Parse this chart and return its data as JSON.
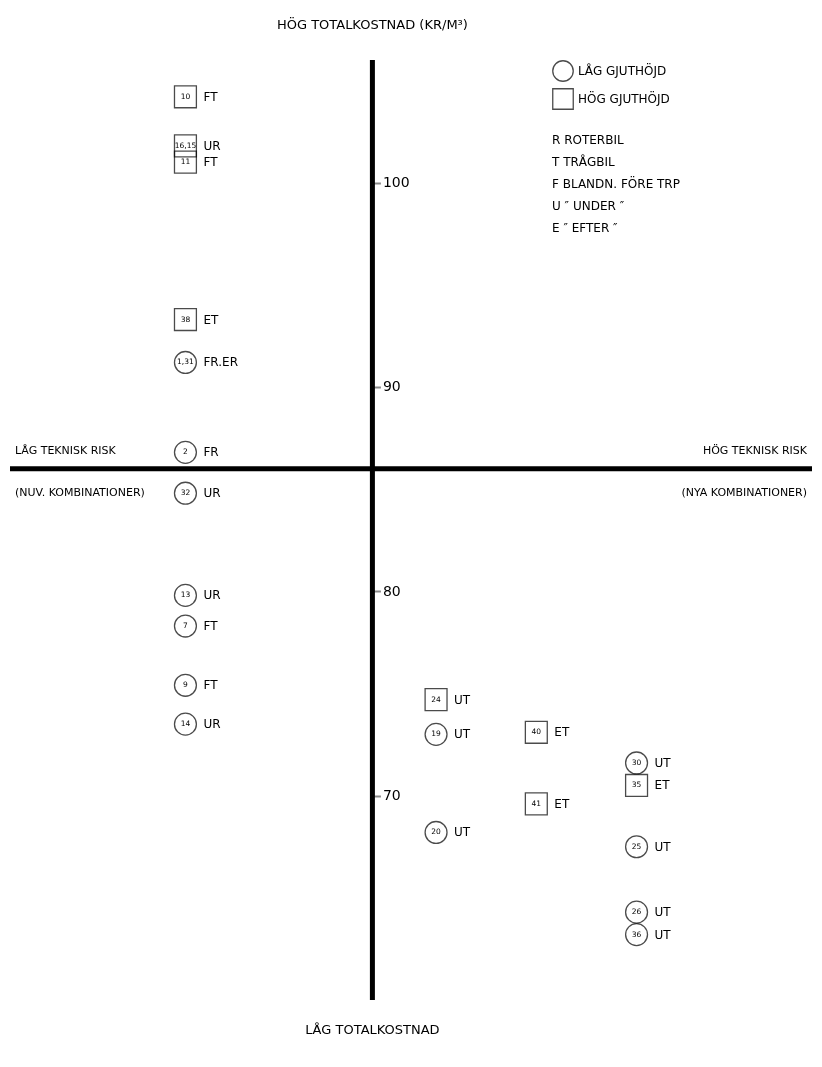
{
  "chart_data": {
    "type": "scatter",
    "ylabel": "HÖG TOTALKOSTNAD (KR/M³)",
    "xlabel": "HÖG TEKNISK RISK",
    "categories": [
      null,
      null,
      null,
      null,
      null,
      null,
      null,
      null,
      null,
      null,
      null,
      null,
      null,
      null,
      null,
      null
    ],
    "ylim": [
      60,
      106
    ],
    "yticks": [
      70,
      80,
      90,
      100
    ],
    "grid": false,
    "legend": "top right",
    "ref_lines": [
      {
        "axis": "y",
        "value": 86
      }
    ],
    "series": [
      {
        "name": "LÅG GJUTHÖJD",
        "color": "#000000",
        "marker": "circle",
        "values": [
          null,
          null,
          null,
          91.2,
          null,
          null,
          null,
          null,
          73.0,
          null,
          null,
          null,
          71.6,
          null,
          null,
          null
        ]
      },
      {
        "color": "#000000",
        "marker": "circle",
        "values": [
          null,
          null,
          null,
          86.8,
          null,
          null,
          null,
          null,
          68.2,
          null,
          null,
          null,
          67.5,
          null,
          null,
          null
        ]
      },
      {
        "color": "#000000",
        "marker": "circle",
        "values": [
          null,
          null,
          null,
          84.8,
          null,
          null,
          null,
          null,
          null,
          null,
          null,
          null,
          64.3,
          null,
          null,
          null
        ]
      },
      {
        "color": "#000000",
        "marker": "circle",
        "values": [
          null,
          null,
          null,
          79.8,
          null,
          null,
          null,
          null,
          null,
          null,
          null,
          null,
          63.2,
          null,
          null,
          null
        ]
      },
      {
        "color": "#000000",
        "marker": "circle",
        "values": [
          null,
          null,
          null,
          78.3,
          null,
          null,
          null,
          null,
          null,
          null,
          null,
          null,
          null,
          null,
          null,
          null
        ]
      },
      {
        "color": "#000000",
        "marker": "circle",
        "values": [
          null,
          null,
          null,
          75.4,
          null,
          null,
          null,
          null,
          null,
          null,
          null,
          null,
          null,
          null,
          null,
          null
        ]
      },
      {
        "color": "#000000",
        "marker": "circle",
        "values": [
          null,
          null,
          null,
          73.5,
          null,
          null,
          null,
          null,
          null,
          null,
          null,
          null,
          null,
          null,
          null,
          null
        ]
      },
      {
        "name": "HÖG GJUTHÖJD",
        "color": "#000000",
        "marker": "square",
        "values": [
          null,
          null,
          null,
          104.2,
          null,
          null,
          null,
          null,
          74.7,
          null,
          73.1,
          null,
          70.5,
          null,
          null,
          null
        ]
      },
      {
        "color": "#000000",
        "marker": "square",
        "values": [
          null,
          null,
          null,
          101.8,
          null,
          null,
          null,
          null,
          null,
          null,
          69.6,
          null,
          null,
          null,
          null,
          null
        ]
      },
      {
        "color": "#000000",
        "marker": "square",
        "values": [
          null,
          null,
          null,
          101.0,
          null,
          null,
          null,
          null,
          null,
          null,
          null,
          null,
          null,
          null,
          null,
          null
        ]
      },
      {
        "color": "#000000",
        "marker": "square",
        "values": [
          null,
          null,
          null,
          93.3,
          null,
          null,
          null,
          null,
          null,
          null,
          null,
          null,
          null,
          null,
          null,
          null
        ]
      }
    ],
    "annotations": [
      "LÅG TOTALKOSTNAD",
      "LÅG TEKNISK RISK",
      "(NUV. KOMBINATIONER)",
      "(NYA KOMBINATIONER)",
      "R  ROTERBIL",
      "T  TRÅGBIL",
      "F  BLANDN. FÖRE TRP",
      "U  ″  UNDER ″",
      "E  ″  EFTER ″",
      {
        "text": "1,31",
        "y": 91.2
      },
      "FR.ER",
      {
        "text": "2",
        "y": 86.8
      },
      "FR",
      {
        "text": "32",
        "y": 84.8
      },
      "UR",
      {
        "text": "13",
        "y": 79.8
      },
      "UR",
      {
        "text": "7",
        "y": 78.3
      },
      "FT",
      {
        "text": "9",
        "y": 75.4
      },
      "FT",
      {
        "text": "14",
        "y": 73.5
      },
      "UR",
      {
        "text": "19",
        "y": 73.0
      },
      "UT",
      {
        "text": "20",
        "y": 68.2
      },
      "UT",
      {
        "text": "30",
        "y": 71.6
      },
      "UT",
      {
        "text": "25",
        "y": 67.5
      },
      "UT",
      {
        "text": "26",
        "y": 64.3
      },
      "UT",
      {
        "text": "36",
        "y": 63.2
      },
      "UT",
      {
        "text": "10",
        "y": 104.2
      },
      "FT",
      {
        "text": "16,15",
        "y": 101.8
      },
      "UR",
      {
        "text": "11",
        "y": 101.0
      },
      "FT",
      {
        "text": "38",
        "y": 93.3
      },
      "ET",
      {
        "text": "24",
        "y": 74.7
      },
      "UT",
      {
        "text": "40",
        "y": 73.1
      },
      "ET",
      {
        "text": "41",
        "y": 69.6
      },
      "ET",
      {
        "text": "35",
        "y": 70.5
      },
      "ET"
    ]
  }
}
